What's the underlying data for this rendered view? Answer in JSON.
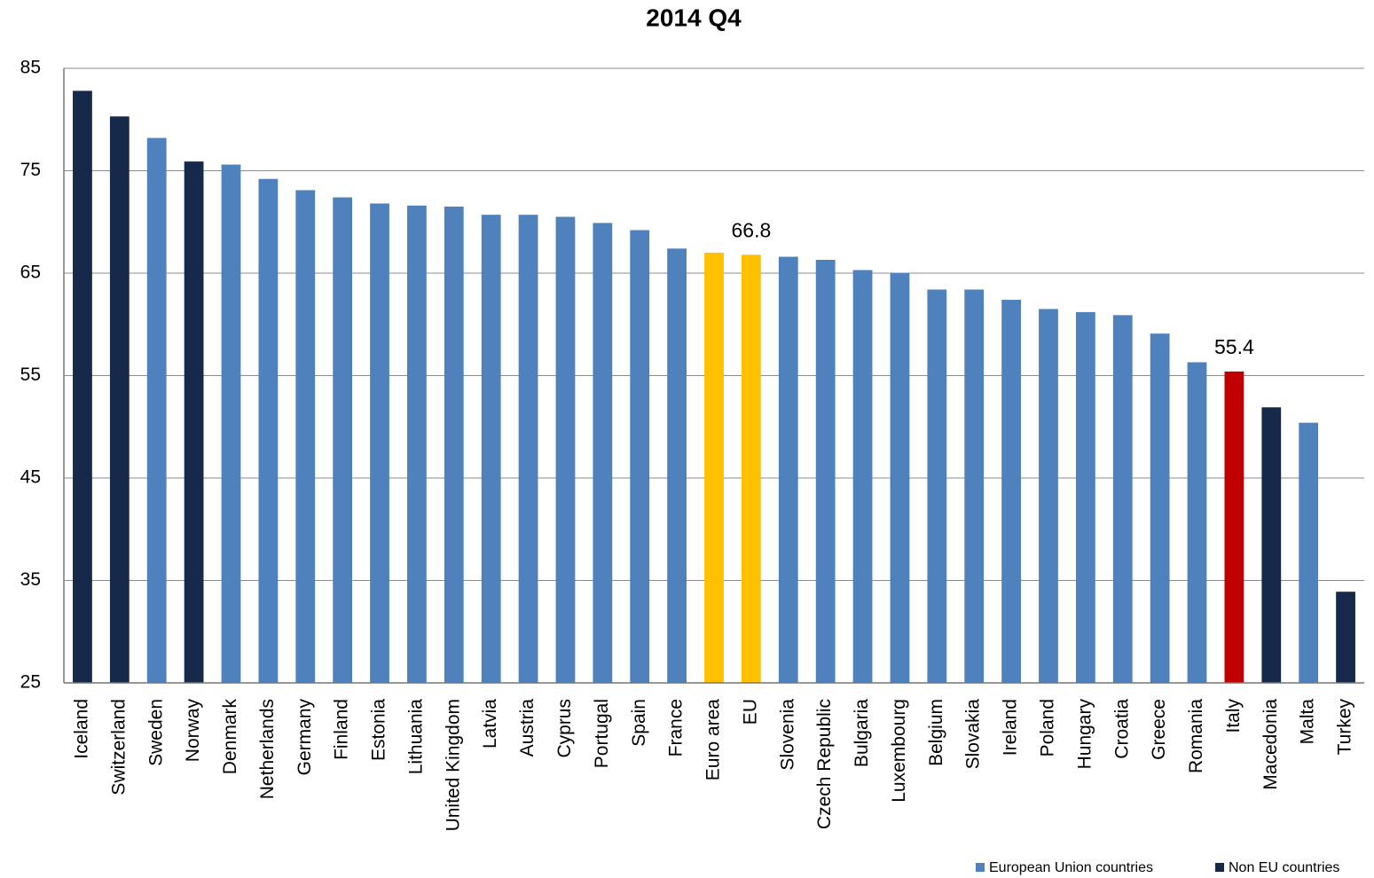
{
  "chart_data": {
    "type": "bar",
    "title": "2014 Q4",
    "categories": [
      "Iceland",
      "Switzerland",
      "Sweden",
      "Norway",
      "Denmark",
      "Netherlands",
      "Germany",
      "Finland",
      "Estonia",
      "Lithuania",
      "United Kingdom",
      "Latvia",
      "Austria",
      "Cyprus",
      "Portugal",
      "Spain",
      "France",
      "Euro area",
      "EU",
      "Slovenia",
      "Czech Republic",
      "Bulgaria",
      "Luxembourg",
      "Belgium",
      "Slovakia",
      "Ireland",
      "Poland",
      "Hungary",
      "Croatia",
      "Greece",
      "Romania",
      "Italy",
      "Macedonia",
      "Malta",
      "Turkey"
    ],
    "values": [
      82.8,
      80.3,
      78.2,
      75.9,
      75.6,
      74.2,
      73.1,
      72.4,
      71.8,
      71.6,
      71.5,
      70.7,
      70.7,
      70.5,
      69.9,
      69.2,
      67.4,
      67.0,
      66.8,
      66.6,
      66.3,
      65.3,
      65.0,
      63.4,
      63.4,
      62.4,
      61.5,
      61.2,
      60.9,
      59.1,
      56.3,
      55.4,
      51.9,
      50.4,
      33.9
    ],
    "value_labels": [
      null,
      null,
      null,
      null,
      null,
      null,
      null,
      null,
      null,
      null,
      null,
      null,
      null,
      null,
      null,
      null,
      null,
      null,
      "66.8",
      null,
      null,
      null,
      null,
      null,
      null,
      null,
      null,
      null,
      null,
      null,
      null,
      "55.4",
      null,
      null,
      null
    ],
    "colors": [
      "#17294a",
      "#17294a",
      "#4f81bd",
      "#17294a",
      "#4f81bd",
      "#4f81bd",
      "#4f81bd",
      "#4f81bd",
      "#4f81bd",
      "#4f81bd",
      "#4f81bd",
      "#4f81bd",
      "#4f81bd",
      "#4f81bd",
      "#4f81bd",
      "#4f81bd",
      "#4f81bd",
      "#ffc000",
      "#ffc000",
      "#4f81bd",
      "#4f81bd",
      "#4f81bd",
      "#4f81bd",
      "#4f81bd",
      "#4f81bd",
      "#4f81bd",
      "#4f81bd",
      "#4f81bd",
      "#4f81bd",
      "#4f81bd",
      "#4f81bd",
      "#c00000",
      "#17294a",
      "#4f81bd",
      "#17294a"
    ],
    "legend": [
      {
        "name": "European Union countries",
        "color": "#4f81bd"
      },
      {
        "name": "Non EU countries",
        "color": "#17294a"
      }
    ],
    "ylim": [
      25,
      85
    ],
    "yticks": [
      25,
      35,
      45,
      55,
      65,
      75,
      85
    ],
    "grid": true
  }
}
